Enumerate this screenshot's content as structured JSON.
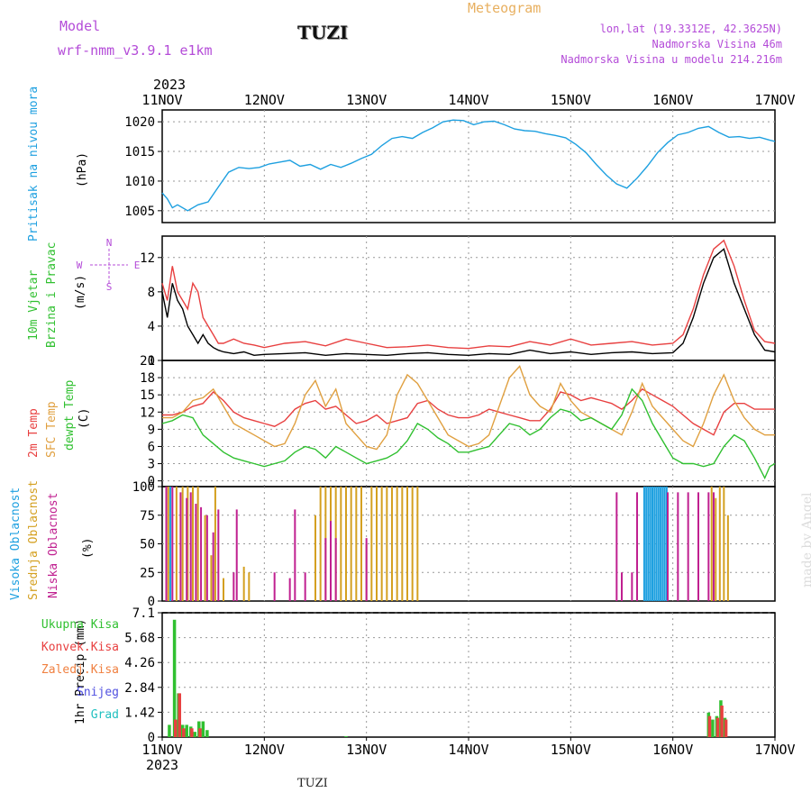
{
  "header": {
    "model_label": "Model",
    "model_name": "wrf-nmm_v3.9.1 e1km",
    "station": "TUZI",
    "product": "Meteogram",
    "coords": "lon,lat (19.3312E, 42.3625N)",
    "elevation": "Nadmorska Visina 46m",
    "model_elevation": "Nadmorska Visina u modelu 214.216m"
  },
  "footer": {
    "station": "TUZI",
    "credit": "made by Angel"
  },
  "colors": {
    "pressure": "#1ea0e0",
    "temp2m": "#e84040",
    "sfc_temp": "#e0a040",
    "dewpoint": "#30c030",
    "high_cloud": "#1ea0e0",
    "mid_cloud": "#d4a020",
    "low_cloud": "#c02090",
    "total_precip": "#30c030",
    "conv_precip": "#e84040",
    "frz_precip": "#f08040",
    "snow": "#5050e0",
    "hail": "#20c0c0",
    "label_purple": "#b44cd8"
  },
  "chart_data": [
    {
      "type": "line",
      "panel": "pressure",
      "ylabel_series": "Pritisak na nivou mora",
      "ylabel_unit": "(hPa)",
      "x_ticks": [
        "11NOV",
        "12NOV",
        "13NOV",
        "14NOV",
        "15NOV",
        "16NOV",
        "17NOV"
      ],
      "x_year": "2023",
      "x_range_days": [
        0,
        6
      ],
      "ylim": [
        1003,
        1022
      ],
      "y_ticks": [
        1005,
        1010,
        1015,
        1020
      ],
      "grid": true,
      "series": [
        {
          "color": "#1ea0e0",
          "x": [
            0,
            0.05,
            0.1,
            0.15,
            0.25,
            0.35,
            0.45,
            0.55,
            0.65,
            0.75,
            0.85,
            0.95,
            1.05,
            1.15,
            1.25,
            1.35,
            1.45,
            1.55,
            1.65,
            1.75,
            1.85,
            1.95,
            2.05,
            2.15,
            2.25,
            2.35,
            2.45,
            2.55,
            2.65,
            2.75,
            2.85,
            2.95,
            3.05,
            3.15,
            3.25,
            3.35,
            3.45,
            3.55,
            3.65,
            3.75,
            3.85,
            3.95,
            4.05,
            4.15,
            4.25,
            4.35,
            4.45,
            4.55,
            4.65,
            4.75,
            4.85,
            4.95,
            5.05,
            5.15,
            5.25,
            5.35,
            5.45,
            5.55,
            5.65,
            5.75,
            5.85,
            5.95,
            6.0
          ],
          "y": [
            1008,
            1007,
            1005.5,
            1006,
            1005,
            1006,
            1006.5,
            1009,
            1011.5,
            1012.3,
            1012.1,
            1012.3,
            1012.9,
            1013.2,
            1013.5,
            1012.5,
            1012.8,
            1012.0,
            1012.8,
            1012.3,
            1013.0,
            1013.8,
            1014.5,
            1016.0,
            1017.2,
            1017.5,
            1017.2,
            1018.2,
            1019.0,
            1020.0,
            1020.3,
            1020.2,
            1019.5,
            1020.0,
            1020.1,
            1019.5,
            1018.8,
            1018.5,
            1018.4,
            1018.0,
            1017.7,
            1017.3,
            1016.2,
            1014.8,
            1012.8,
            1011.0,
            1009.5,
            1008.8,
            1010.5,
            1012.5,
            1014.8,
            1016.5,
            1017.8,
            1018.2,
            1018.9,
            1019.2,
            1018.2,
            1017.4,
            1017.5,
            1017.2,
            1017.4,
            1016.9,
            1016.7
          ]
        }
      ]
    },
    {
      "type": "line",
      "panel": "wind",
      "ylabel_series_1": "10m Vjetar",
      "ylabel_series_2": "Brzina i Pravac",
      "ylabel_unit": "(m/s)",
      "compass": {
        "n": "N",
        "s": "S",
        "e": "E",
        "w": "W"
      },
      "ylim": [
        0,
        14.5
      ],
      "y_ticks": [
        0,
        4,
        8,
        12
      ],
      "grid": true,
      "series": [
        {
          "name": "speed",
          "color": "#000000",
          "x": [
            0,
            0.05,
            0.1,
            0.15,
            0.2,
            0.25,
            0.3,
            0.35,
            0.4,
            0.45,
            0.5,
            0.55,
            0.6,
            0.7,
            0.8,
            0.9,
            1.0,
            1.2,
            1.4,
            1.6,
            1.8,
            2.0,
            2.2,
            2.4,
            2.6,
            2.8,
            3.0,
            3.2,
            3.4,
            3.6,
            3.8,
            4.0,
            4.2,
            4.4,
            4.6,
            4.8,
            5.0,
            5.1,
            5.2,
            5.3,
            5.4,
            5.5,
            5.6,
            5.7,
            5.8,
            5.9,
            6.0
          ],
          "y": [
            8,
            5,
            9,
            7,
            6,
            4,
            3,
            2,
            3,
            2,
            1.5,
            1.2,
            1,
            0.8,
            1,
            0.6,
            0.7,
            0.8,
            0.9,
            0.6,
            0.8,
            0.7,
            0.6,
            0.8,
            0.9,
            0.7,
            0.6,
            0.8,
            0.7,
            1.2,
            0.8,
            1.0,
            0.7,
            0.9,
            1.0,
            0.8,
            0.9,
            2,
            5,
            9,
            12,
            13,
            9,
            6,
            3,
            1.2,
            1
          ]
        },
        {
          "name": "gust",
          "color": "#e84040",
          "x": [
            0,
            0.05,
            0.1,
            0.15,
            0.2,
            0.25,
            0.3,
            0.35,
            0.4,
            0.45,
            0.5,
            0.55,
            0.6,
            0.7,
            0.8,
            0.9,
            1.0,
            1.2,
            1.4,
            1.6,
            1.8,
            2.0,
            2.2,
            2.4,
            2.6,
            2.8,
            3.0,
            3.2,
            3.4,
            3.6,
            3.8,
            4.0,
            4.2,
            4.4,
            4.6,
            4.8,
            5.0,
            5.1,
            5.2,
            5.3,
            5.4,
            5.5,
            5.6,
            5.7,
            5.8,
            5.9,
            6.0
          ],
          "y": [
            9,
            7,
            11,
            8,
            7,
            6,
            9,
            8,
            5,
            4,
            3,
            2,
            2,
            2.5,
            2,
            1.8,
            1.5,
            2,
            2.2,
            1.7,
            2.5,
            2,
            1.5,
            1.6,
            1.8,
            1.5,
            1.4,
            1.7,
            1.6,
            2.2,
            1.8,
            2.5,
            1.8,
            2,
            2.2,
            1.8,
            2,
            3,
            6,
            10,
            13,
            14,
            11,
            7,
            3.5,
            2.2,
            2
          ]
        }
      ]
    },
    {
      "type": "line",
      "panel": "temperature",
      "ylabel_series_1": "2m Temp",
      "ylabel_series_2": "SFC Temp",
      "ylabel_series_3": "dewpt Temp",
      "ylabel_unit": "(C)",
      "ylim": [
        -1,
        21
      ],
      "y_ticks": [
        0,
        3,
        6,
        9,
        12,
        15,
        18,
        21
      ],
      "grid": true,
      "series": [
        {
          "name": "2m Temp",
          "color": "#e84040",
          "x": [
            0,
            0.1,
            0.2,
            0.3,
            0.4,
            0.5,
            0.6,
            0.7,
            0.8,
            0.9,
            1.0,
            1.1,
            1.2,
            1.3,
            1.4,
            1.5,
            1.6,
            1.7,
            1.8,
            1.9,
            2.0,
            2.1,
            2.2,
            2.3,
            2.4,
            2.5,
            2.6,
            2.7,
            2.8,
            2.9,
            3.0,
            3.1,
            3.2,
            3.3,
            3.4,
            3.5,
            3.6,
            3.7,
            3.8,
            3.9,
            4.0,
            4.1,
            4.2,
            4.3,
            4.4,
            4.5,
            4.6,
            4.7,
            4.8,
            4.9,
            5.0,
            5.1,
            5.2,
            5.3,
            5.4,
            5.5,
            5.6,
            5.7,
            5.8,
            5.9,
            6.0
          ],
          "y": [
            11.5,
            11.5,
            12,
            13,
            13.5,
            15.5,
            14,
            12,
            11,
            10.5,
            10,
            9.5,
            10.5,
            12.5,
            13.5,
            14,
            12.5,
            13,
            11.5,
            10,
            10.5,
            11.5,
            10,
            10.5,
            11,
            13.5,
            14,
            12.5,
            11.5,
            11,
            11,
            11.5,
            12.5,
            12,
            11.5,
            11,
            10.5,
            10.5,
            12.5,
            15.5,
            15,
            14,
            14.5,
            14,
            13.5,
            12.5,
            14,
            16,
            15,
            14,
            13,
            11.5,
            10,
            9,
            8,
            12,
            13.5,
            13.5,
            12.5,
            12.5,
            12.5
          ]
        },
        {
          "name": "SFC Temp",
          "color": "#e0a040",
          "x": [
            0,
            0.1,
            0.2,
            0.3,
            0.4,
            0.5,
            0.6,
            0.7,
            0.8,
            0.9,
            1.0,
            1.1,
            1.2,
            1.3,
            1.4,
            1.5,
            1.6,
            1.7,
            1.8,
            1.9,
            2.0,
            2.1,
            2.2,
            2.3,
            2.4,
            2.5,
            2.6,
            2.7,
            2.8,
            2.9,
            3.0,
            3.1,
            3.2,
            3.3,
            3.4,
            3.5,
            3.6,
            3.7,
            3.8,
            3.9,
            4.0,
            4.1,
            4.2,
            4.3,
            4.4,
            4.5,
            4.6,
            4.7,
            4.8,
            4.9,
            5.0,
            5.1,
            5.2,
            5.3,
            5.4,
            5.5,
            5.6,
            5.7,
            5.8,
            5.9,
            6.0
          ],
          "y": [
            11,
            11,
            12,
            14,
            14.5,
            16,
            13,
            10,
            9,
            8,
            7,
            6,
            6.5,
            10,
            15,
            17.5,
            13,
            16,
            10,
            8,
            6,
            5.5,
            8,
            15,
            18.5,
            17,
            14,
            11,
            8,
            7,
            6,
            6.5,
            8,
            13,
            18,
            20,
            15,
            13,
            12,
            17,
            14,
            12,
            11,
            10,
            9,
            8,
            12,
            17,
            13,
            11,
            9,
            7,
            6,
            10,
            15,
            18.5,
            14,
            11,
            9,
            8,
            8
          ]
        },
        {
          "name": "dewpt Temp",
          "color": "#30c030",
          "x": [
            0,
            0.1,
            0.2,
            0.3,
            0.4,
            0.5,
            0.6,
            0.7,
            0.8,
            0.9,
            1.0,
            1.1,
            1.2,
            1.3,
            1.4,
            1.5,
            1.6,
            1.7,
            1.8,
            1.9,
            2.0,
            2.1,
            2.2,
            2.3,
            2.4,
            2.5,
            2.6,
            2.7,
            2.8,
            2.9,
            3.0,
            3.1,
            3.2,
            3.3,
            3.4,
            3.5,
            3.6,
            3.7,
            3.8,
            3.9,
            4.0,
            4.1,
            4.2,
            4.3,
            4.4,
            4.5,
            4.6,
            4.7,
            4.8,
            4.9,
            5.0,
            5.1,
            5.2,
            5.3,
            5.4,
            5.5,
            5.6,
            5.7,
            5.8,
            5.9,
            5.95,
            6.0
          ],
          "y": [
            10,
            10.5,
            11.5,
            11,
            8,
            6.5,
            5,
            4,
            3.5,
            3,
            2.5,
            3,
            3.5,
            5,
            6,
            5.5,
            4,
            6,
            5,
            4,
            3,
            3.5,
            4,
            5,
            7,
            10,
            9,
            7.5,
            6.5,
            5,
            5,
            5.5,
            6,
            8,
            10,
            9.5,
            8,
            9,
            11,
            12.5,
            12,
            10.5,
            11,
            10,
            9,
            11.5,
            16,
            14,
            10,
            7,
            4,
            3,
            3,
            2.5,
            3,
            6,
            8,
            7,
            4,
            0.5,
            2.5,
            3
          ]
        }
      ]
    },
    {
      "type": "bar",
      "panel": "cloud",
      "ylabel_series_1": "Visoka Oblacnost",
      "ylabel_series_2": "Srednja Oblacnost",
      "ylabel_series_3": "Niska Oblacnost",
      "ylabel_unit": "(%)",
      "ylim": [
        0,
        100
      ],
      "y_ticks": [
        0,
        25,
        50,
        75,
        100
      ],
      "grid": true,
      "series": [
        {
          "name": "Visoka Oblacnost",
          "color": "#1ea0e0",
          "x": [
            0.08,
            4.72,
            4.74,
            4.76,
            4.78,
            4.8,
            4.82,
            4.84,
            4.86,
            4.88,
            4.9,
            4.92,
            4.94
          ],
          "values": [
            100,
            100,
            100,
            100,
            100,
            100,
            100,
            100,
            100,
            100,
            100,
            100,
            100
          ]
        },
        {
          "name": "Srednja Oblacnost",
          "color": "#d4a020",
          "x": [
            0.06,
            0.14,
            0.2,
            0.25,
            0.3,
            0.35,
            0.42,
            0.48,
            0.52,
            0.6,
            0.8,
            0.85,
            1.5,
            1.55,
            1.6,
            1.65,
            1.7,
            1.75,
            1.8,
            1.85,
            1.9,
            1.95,
            2.0,
            2.05,
            2.1,
            2.15,
            2.2,
            2.25,
            2.3,
            2.35,
            2.4,
            2.45,
            2.5,
            5.38,
            5.42,
            5.46,
            5.5,
            5.54
          ],
          "values": [
            100,
            100,
            100,
            100,
            100,
            100,
            75,
            40,
            100,
            20,
            30,
            25,
            75,
            100,
            100,
            100,
            100,
            100,
            100,
            100,
            100,
            100,
            50,
            100,
            100,
            100,
            100,
            100,
            100,
            100,
            100,
            100,
            100,
            100,
            90,
            100,
            100,
            75
          ]
        },
        {
          "name": "Niska Oblacnost",
          "color": "#c02090",
          "x": [
            0.04,
            0.1,
            0.18,
            0.24,
            0.28,
            0.33,
            0.38,
            0.44,
            0.5,
            0.55,
            0.7,
            0.73,
            1.1,
            1.25,
            1.3,
            1.4,
            1.6,
            1.65,
            1.7,
            2.0,
            4.45,
            4.5,
            4.6,
            4.65,
            4.95,
            5.05,
            5.15,
            5.25,
            5.35,
            5.4
          ],
          "values": [
            100,
            100,
            95,
            90,
            95,
            85,
            82,
            75,
            60,
            80,
            25,
            80,
            25,
            20,
            80,
            25,
            55,
            70,
            55,
            55,
            95,
            25,
            25,
            95,
            95,
            95,
            95,
            95,
            95,
            95
          ]
        }
      ]
    },
    {
      "type": "bar",
      "panel": "precip",
      "ylabel_unit": "1hr Precip (mm)",
      "legend": [
        "Ukupna Kisa",
        "Konvek.Kisa",
        "Zaledj.Kisa",
        "Snijeg",
        "Grad"
      ],
      "ylim": [
        0,
        7.1
      ],
      "y_ticks": [
        0,
        1.42,
        2.84,
        4.26,
        5.68,
        7.1
      ],
      "grid": true,
      "series": [
        {
          "name": "Ukupna Kisa",
          "color": "#30c030",
          "x": [
            0.07,
            0.12,
            0.16,
            0.2,
            0.24,
            0.28,
            0.32,
            0.36,
            0.4,
            0.44,
            1.8,
            5.35,
            5.39,
            5.43,
            5.47,
            5.51
          ],
          "values": [
            0.7,
            6.7,
            2.5,
            0.7,
            0.7,
            0.6,
            0.3,
            0.9,
            0.9,
            0.4,
            0.05,
            1.4,
            1.0,
            1.2,
            2.1,
            1.1
          ]
        },
        {
          "name": "Konvek.Kisa",
          "color": "#e84040",
          "x": [
            0.13,
            0.17,
            0.21,
            0.29,
            0.37,
            5.36,
            5.44,
            5.48,
            5.52
          ],
          "values": [
            1.0,
            2.5,
            0.5,
            0.5,
            0.5,
            1.2,
            1.1,
            1.8,
            1.0
          ]
        }
      ]
    }
  ]
}
